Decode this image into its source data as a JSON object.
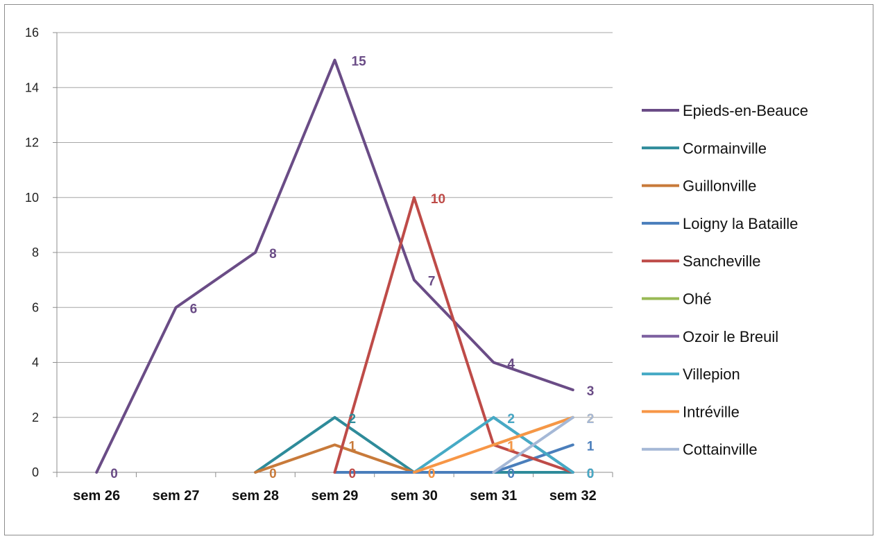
{
  "chart_data": {
    "type": "line",
    "title": "",
    "xlabel": "",
    "ylabel": "",
    "categories": [
      "sem 26",
      "sem 27",
      "sem 28",
      "sem 29",
      "sem 30",
      "sem 31",
      "sem 32"
    ],
    "ylim": [
      0,
      16
    ],
    "yticks": [
      0,
      2,
      4,
      6,
      8,
      10,
      12,
      14,
      16
    ],
    "grid": true,
    "legend": "right",
    "series": [
      {
        "name": "Epieds-en-Beauce",
        "color": "#6A4C86",
        "values": [
          0,
          6,
          8,
          15,
          7,
          4,
          3
        ],
        "labels": [
          "0",
          "6",
          "8",
          "15",
          "7",
          "4",
          "3"
        ]
      },
      {
        "name": "Cormainville",
        "color": "#2E8B9A",
        "values": [
          null,
          null,
          0,
          2,
          0,
          0,
          0
        ],
        "labels": [
          null,
          null,
          null,
          "2",
          null,
          null,
          "0"
        ]
      },
      {
        "name": "Guillonville",
        "color": "#C87A3A",
        "values": [
          null,
          null,
          0,
          1,
          0,
          null,
          null
        ],
        "labels": [
          null,
          null,
          "0",
          "1",
          "0",
          null,
          null
        ]
      },
      {
        "name": "Loigny la Bataille",
        "color": "#4A7EBB",
        "values": [
          null,
          null,
          null,
          0,
          0,
          0,
          1
        ],
        "labels": [
          null,
          null,
          null,
          null,
          null,
          "0",
          "1"
        ]
      },
      {
        "name": "Sancheville",
        "color": "#BE4B48",
        "values": [
          null,
          null,
          null,
          0,
          10,
          1,
          0
        ],
        "labels": [
          null,
          null,
          null,
          "0",
          "10",
          "1",
          "0"
        ]
      },
      {
        "name": "Ohé",
        "color": "#98B954",
        "values": [
          null,
          null,
          null,
          null,
          null,
          1,
          2
        ],
        "labels": [
          null,
          null,
          null,
          null,
          null,
          "1",
          "2"
        ]
      },
      {
        "name": "Ozoir le Breuil",
        "color": "#7D60A0",
        "values": [
          null,
          null,
          null,
          null,
          null,
          2,
          0
        ],
        "labels": [
          null,
          null,
          null,
          null,
          null,
          "2",
          "0"
        ]
      },
      {
        "name": "Villepion",
        "color": "#46AAC5",
        "values": [
          null,
          null,
          null,
          null,
          0,
          2,
          0
        ],
        "labels": [
          null,
          null,
          null,
          null,
          null,
          "2",
          "0"
        ]
      },
      {
        "name": "Intréville",
        "color": "#F79646",
        "values": [
          null,
          null,
          null,
          null,
          0,
          1,
          2
        ],
        "labels": [
          null,
          null,
          null,
          null,
          "0",
          "1",
          "2"
        ]
      },
      {
        "name": "Cottainville",
        "color": "#A5B8D6",
        "values": [
          null,
          null,
          null,
          null,
          null,
          0,
          2
        ],
        "labels": [
          null,
          null,
          null,
          null,
          null,
          null,
          "2"
        ]
      }
    ]
  }
}
